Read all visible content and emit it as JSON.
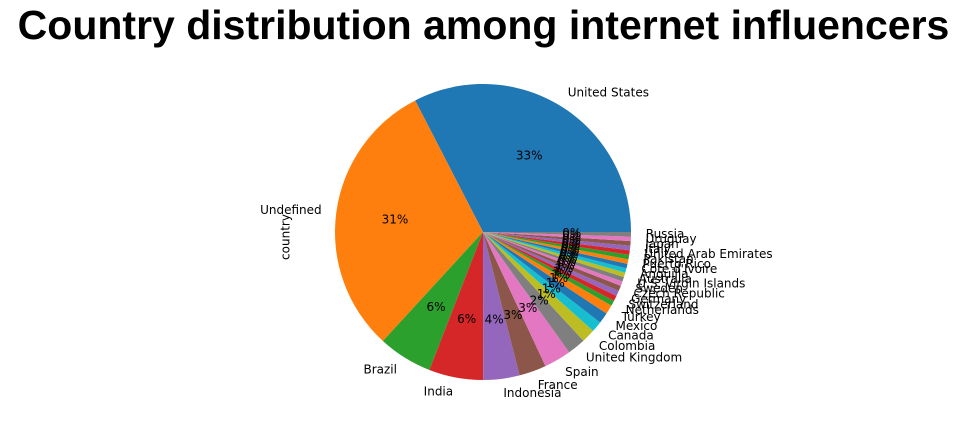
{
  "chart_data": {
    "type": "pie",
    "title": "Country distribution among internet influencers",
    "ylabel": "country",
    "autopct_format": "%.0f%%",
    "start_angle_deg": 0,
    "counterclock": true,
    "categories": [
      "United States",
      "Undefined",
      "Brazil",
      "India",
      "Indonesia",
      "France",
      "Spain",
      "United Kingdom",
      "Colombia",
      "Canada",
      "Mexico",
      "Turkey",
      "Netherlands",
      "Switzerland",
      "Germany",
      "Czech Republic",
      "Sweden",
      "U.S. Virgin Islands",
      "Australia",
      "Anguilla",
      "Côte d'Ivoire",
      "Puerto Rico",
      "Pakistan",
      "United Arab Emirates",
      "Italy",
      "Japan",
      "Uruguay",
      "Russia"
    ],
    "values": [
      33,
      31,
      6,
      6,
      4,
      3,
      3,
      2,
      1.5,
      1.2,
      1.2,
      1.0,
      0.6,
      0.6,
      0.6,
      0.6,
      0.5,
      0.5,
      0.5,
      0.5,
      0.5,
      0.5,
      0.5,
      0.5,
      0.5,
      0.5,
      0.5,
      0.5
    ],
    "colors": [
      "#1f77b4",
      "#ff7f0e",
      "#2ca02c",
      "#d62728",
      "#9467bd",
      "#8c564b",
      "#e377c2",
      "#7f7f7f",
      "#bcbd22",
      "#17becf"
    ]
  }
}
